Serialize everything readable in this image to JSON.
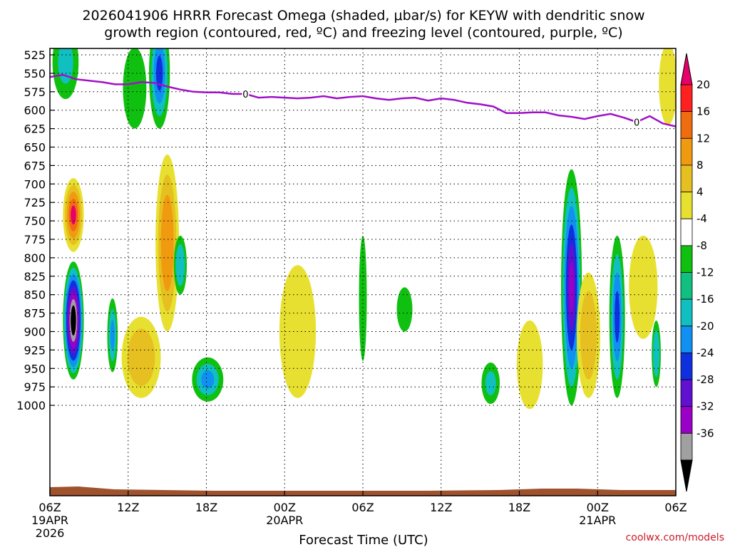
{
  "chart_data": {
    "type": "heatmap",
    "title_line1": "2026041906 HRRR Forecast Omega (shaded, μbar/s) for KEYW with dendritic snow",
    "title_line2": "growth region (contoured, red, ºC) and freezing level (contoured, purple, ºC)",
    "xlabel": "Forecast Time (UTC)",
    "credit": "coolwx.com/models",
    "x_range_hours": [
      0,
      48
    ],
    "y_levels": [
      525,
      550,
      575,
      600,
      625,
      650,
      675,
      700,
      725,
      750,
      775,
      800,
      825,
      850,
      875,
      900,
      925,
      950,
      975,
      1000
    ],
    "y_labels": [
      "525",
      "550",
      "575",
      "600",
      "625",
      "650",
      "675",
      "700",
      "725",
      "750",
      "775",
      "800",
      "825",
      "850",
      "875",
      "900",
      "925",
      "950",
      "975",
      "1000"
    ],
    "x_ticks": [
      {
        "hour": 0,
        "label": "06Z",
        "date": "19APR",
        "year": "2026"
      },
      {
        "hour": 6,
        "label": "12Z"
      },
      {
        "hour": 12,
        "label": "18Z"
      },
      {
        "hour": 18,
        "label": "00Z",
        "date": "20APR"
      },
      {
        "hour": 24,
        "label": "06Z"
      },
      {
        "hour": 30,
        "label": "12Z"
      },
      {
        "hour": 36,
        "label": "18Z"
      },
      {
        "hour": 42,
        "label": "00Z",
        "date": "21APR"
      },
      {
        "hour": 48,
        "label": "06Z"
      }
    ],
    "colorbar": {
      "labels": [
        "20",
        "16",
        "12",
        "8",
        "4",
        "-4",
        "-8",
        "-12",
        "-16",
        "-20",
        "-24",
        "-28",
        "-32",
        "-36"
      ],
      "colors": [
        "#e8006a",
        "#ff2020",
        "#f06c10",
        "#f09a10",
        "#e6c020",
        "#e8e030",
        "#ffffff",
        "#10c010",
        "#10c080",
        "#10c0c0",
        "#1090f0",
        "#1030e0",
        "#6010d0",
        "#9a00c8",
        "#a0a0a0",
        "#000000"
      ]
    },
    "freezing_level": {
      "label": "0",
      "color": "#a010c8",
      "hours": [
        0,
        1,
        2,
        3,
        4,
        5,
        6,
        7,
        8,
        9,
        10,
        11,
        12,
        13,
        14,
        15,
        16,
        17,
        18,
        19,
        20,
        21,
        22,
        23,
        24,
        25,
        26,
        27,
        28,
        29,
        30,
        31,
        32,
        33,
        34,
        35,
        36,
        37,
        38,
        39,
        40,
        41,
        42,
        43,
        44,
        45,
        46,
        47,
        48
      ],
      "pressure": [
        555,
        552,
        558,
        560,
        562,
        565,
        565,
        562,
        563,
        568,
        572,
        575,
        576,
        576,
        578,
        578,
        583,
        582,
        583,
        584,
        583,
        581,
        584,
        582,
        581,
        584,
        586,
        584,
        583,
        587,
        584,
        586,
        590,
        592,
        595,
        604,
        604,
        603,
        603,
        607,
        609,
        612,
        608,
        605,
        610,
        616,
        608,
        618,
        622
      ]
    },
    "omega_cells": [
      {
        "hour": 1.8,
        "p": 885,
        "rw": 0.8,
        "rp": 80,
        "value": -36
      },
      {
        "hour": 1.8,
        "p": 742,
        "rw": 0.8,
        "rp": 50,
        "value": 20
      },
      {
        "hour": 1.2,
        "p": 535,
        "rw": 1.0,
        "rp": 50,
        "value": -8
      },
      {
        "hour": 4.8,
        "p": 905,
        "rw": 0.4,
        "rp": 50,
        "value": -12
      },
      {
        "hour": 6.5,
        "p": 570,
        "rw": 0.9,
        "rp": 55,
        "value": -6
      },
      {
        "hour": 7.0,
        "p": 935,
        "rw": 1.5,
        "rp": 55,
        "value": 10
      },
      {
        "hour": 9.0,
        "p": 780,
        "rw": 0.9,
        "rp": 120,
        "value": 14
      },
      {
        "hour": 8.4,
        "p": 550,
        "rw": 0.8,
        "rp": 75,
        "value": -16
      },
      {
        "hour": 10.0,
        "p": 810,
        "rw": 0.5,
        "rp": 40,
        "value": -10
      },
      {
        "hour": 12.1,
        "p": 965,
        "rw": 1.2,
        "rp": 30,
        "value": -12
      },
      {
        "hour": 19.0,
        "p": 900,
        "rw": 1.4,
        "rp": 90,
        "value": 6
      },
      {
        "hour": 24.0,
        "p": 855,
        "rw": 0.3,
        "rp": 85,
        "value": -6
      },
      {
        "hour": 27.2,
        "p": 870,
        "rw": 0.6,
        "rp": 30,
        "value": -6
      },
      {
        "hour": 33.8,
        "p": 970,
        "rw": 0.7,
        "rp": 28,
        "value": -8
      },
      {
        "hour": 36.8,
        "p": 945,
        "rw": 1.0,
        "rp": 60,
        "value": 7
      },
      {
        "hour": 40.0,
        "p": 840,
        "rw": 0.8,
        "rp": 160,
        "value": -24
      },
      {
        "hour": 41.3,
        "p": 905,
        "rw": 0.9,
        "rp": 85,
        "value": 11
      },
      {
        "hour": 43.5,
        "p": 880,
        "rw": 0.6,
        "rp": 110,
        "value": -16
      },
      {
        "hour": 45.5,
        "p": 840,
        "rw": 1.1,
        "rp": 70,
        "value": 6
      },
      {
        "hour": 46.5,
        "p": 930,
        "rw": 0.35,
        "rp": 45,
        "value": -10
      },
      {
        "hour": 47.4,
        "p": 565,
        "rw": 0.7,
        "rp": 55,
        "value": 7
      }
    ]
  }
}
